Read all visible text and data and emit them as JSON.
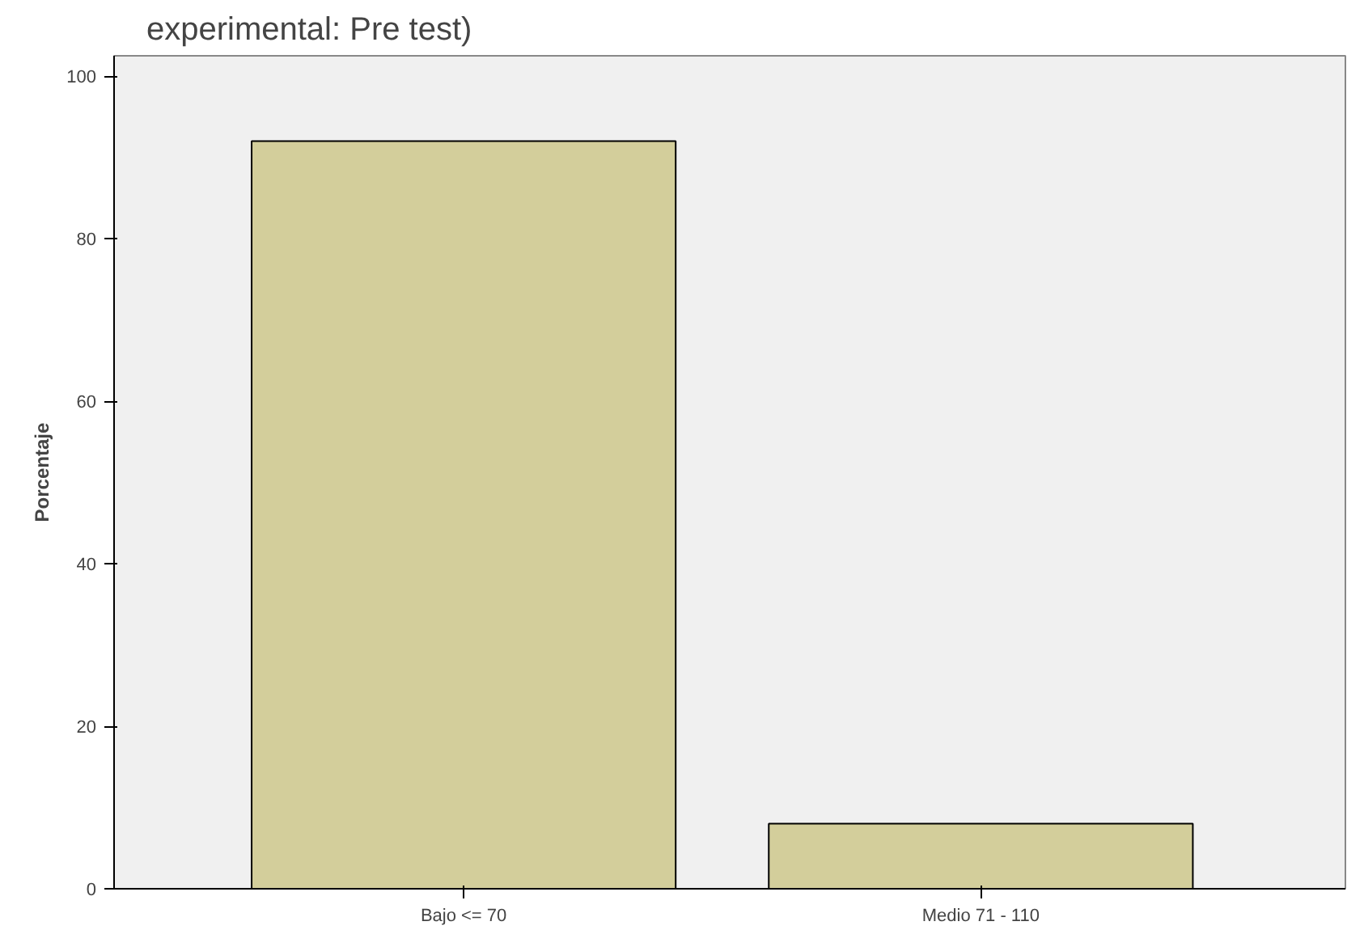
{
  "chart_data": {
    "type": "bar",
    "title": "experimental: Pre test)",
    "ylabel": "Porcentaje",
    "categories": [
      "Bajo <= 70",
      "Medio 71 - 110"
    ],
    "values": [
      92,
      8
    ],
    "color": "#d3ce9b",
    "ylim": [
      0,
      102.5
    ],
    "yticks": [
      0,
      20,
      40,
      60,
      80,
      100
    ],
    "grid": false
  }
}
